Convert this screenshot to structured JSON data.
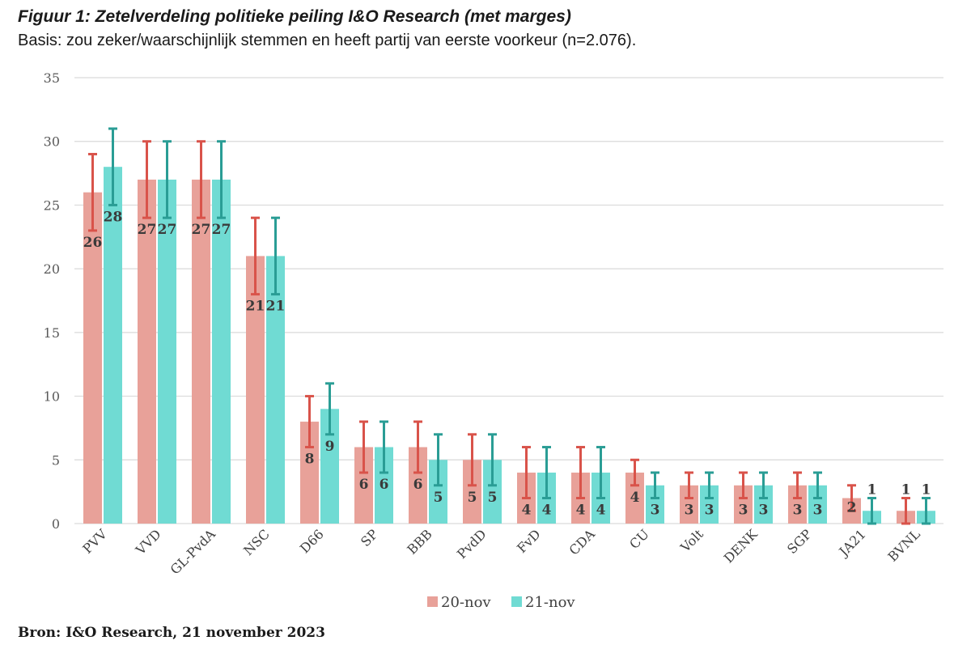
{
  "header": {
    "title": "Figuur 1: Zetelverdeling politieke peiling I&O Research (met marges)",
    "subtitle": "Basis: zou zeker/waarschijnlijk stemmen en heeft partij van eerste voorkeur (n=2.076)."
  },
  "footer": {
    "source": "Bron: I&O Research, 21 november 2023"
  },
  "colors": {
    "series1_bar": "#e8a199",
    "series1_error": "#d9534a",
    "series2_bar": "#70dbd3",
    "series2_error": "#2a9d95",
    "grid": "#d9d9d9"
  },
  "chart_data": {
    "type": "bar",
    "title": "Figuur 1: Zetelverdeling politieke peiling I&O Research (met marges)",
    "subtitle": "Basis: zou zeker/waarschijnlijk stemmen en heeft partij van eerste voorkeur (n=2.076).",
    "categories": [
      "PVV",
      "VVD",
      "GL-PvdA",
      "NSC",
      "D66",
      "SP",
      "BBB",
      "PvdD",
      "FvD",
      "CDA",
      "CU",
      "Volt",
      "DENK",
      "SGP",
      "JA21",
      "BVNL"
    ],
    "series": [
      {
        "name": "20-nov",
        "values": [
          26,
          27,
          27,
          21,
          8,
          6,
          6,
          5,
          4,
          4,
          4,
          3,
          3,
          3,
          2,
          1
        ],
        "error_low": [
          23,
          24,
          24,
          18,
          6,
          4,
          4,
          3,
          2,
          2,
          3,
          2,
          2,
          2,
          1,
          0
        ],
        "error_high": [
          29,
          30,
          30,
          24,
          10,
          8,
          8,
          7,
          6,
          6,
          5,
          4,
          4,
          4,
          3,
          2
        ]
      },
      {
        "name": "21-nov",
        "values": [
          28,
          27,
          27,
          21,
          9,
          6,
          5,
          5,
          4,
          4,
          3,
          3,
          3,
          3,
          1,
          1
        ],
        "error_low": [
          25,
          24,
          24,
          18,
          7,
          4,
          3,
          3,
          2,
          2,
          2,
          2,
          2,
          2,
          0,
          0
        ],
        "error_high": [
          31,
          30,
          30,
          24,
          11,
          8,
          7,
          7,
          6,
          6,
          4,
          4,
          4,
          4,
          2,
          2
        ]
      }
    ],
    "yticks": [
      0,
      5,
      10,
      15,
      20,
      25,
      30,
      35
    ],
    "ylim": [
      0,
      35
    ],
    "grid": true,
    "legend": "bottom"
  }
}
